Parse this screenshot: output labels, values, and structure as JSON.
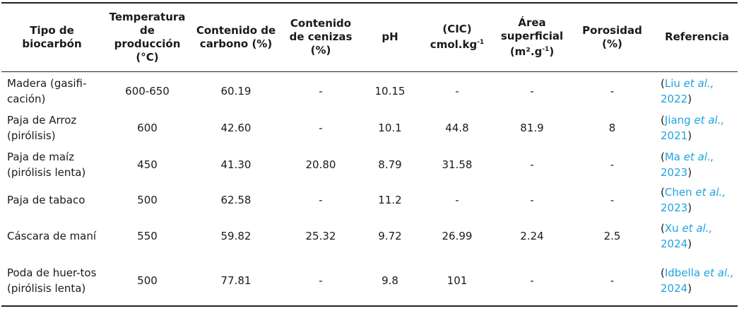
{
  "table": {
    "headers": [
      {
        "text": "Tipo de biocarbón"
      },
      {
        "text": "Temperatura de producción (°C)"
      },
      {
        "text": "Contenido de carbono (%)"
      },
      {
        "text": "Contenido de cenizas (%)"
      },
      {
        "text": "pH"
      },
      {
        "text": "(CIC) cmol.kg",
        "sup": "-1"
      },
      {
        "text": "Área superficial (m².g",
        "sup": "-1",
        "after": ")"
      },
      {
        "text": "Porosidad (%)"
      },
      {
        "text": "Referencia"
      }
    ],
    "rows": [
      {
        "cells": [
          "Madera (gasifi-cación)",
          "600-650",
          "60.19",
          "-",
          "10.15",
          "-",
          "-",
          "-"
        ],
        "ref": {
          "open": "(",
          "author": "Liu",
          "etal": "et al.,",
          "year": "2022",
          "close": ")"
        }
      },
      {
        "cells": [
          "Paja de Arroz (pirólisis)",
          "600",
          "42.60",
          "-",
          "10.1",
          "44.8",
          "81.9",
          "8"
        ],
        "ref": {
          "open": "(",
          "author": "Jiang",
          "etal": "et al.,",
          "year": "2021",
          "close": ")"
        }
      },
      {
        "cells": [
          "Paja de maíz (pirólisis lenta)",
          "450",
          "41.30",
          "20.80",
          "8.79",
          "31.58",
          "-",
          "-"
        ],
        "ref": {
          "open": "(",
          "author": "Ma",
          "etal": "et al.,",
          "year": "2023",
          "close": ")"
        }
      },
      {
        "cells": [
          "Paja de tabaco",
          "500",
          "62.58",
          "-",
          "11.2",
          "-",
          "-",
          "-"
        ],
        "ref": {
          "open": "(",
          "author": "Chen",
          "etal": "et al.,",
          "year": "2023",
          "close": ")"
        }
      },
      {
        "cells": [
          "Cáscara de maní",
          "550",
          "59.82",
          "25.32",
          "9.72",
          "26.99",
          "2.24",
          "2.5"
        ],
        "ref": {
          "open": "(",
          "author": "Xu",
          "etal": "et al.,",
          "year": "2024",
          "close": ")"
        }
      },
      {
        "cells": [
          "Poda de huer-tos (pirólisis lenta)",
          "500",
          "77.81",
          "-",
          "9.8",
          "101",
          "-",
          "-"
        ],
        "ref": {
          "open": "(",
          "author": "Idbella",
          "etal": "et al.,",
          "year": "2024",
          "close": ")"
        }
      }
    ]
  }
}
